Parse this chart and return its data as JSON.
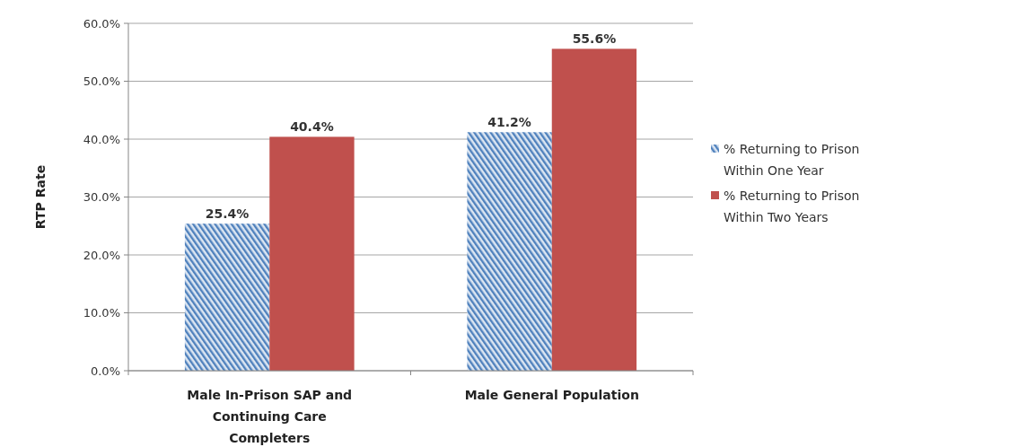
{
  "chart_data": {
    "type": "bar",
    "ylabel": "RTP Rate",
    "categories": [
      "Male In-Prison SAP and Continuing Care Completers",
      "Male General Population"
    ],
    "series": [
      {
        "name": "% Returning to Prison Within One Year",
        "color": "#4f81bd",
        "values": [
          25.4,
          41.2
        ],
        "value_labels": [
          "25.4%",
          "41.2%"
        ]
      },
      {
        "name": "% Returning to Prison Within Two Years",
        "color": "#c0504d",
        "values": [
          40.4,
          55.6
        ],
        "value_labels": [
          "40.4%",
          "55.6%"
        ]
      }
    ],
    "ylim": [
      0,
      60
    ],
    "yticks": [
      {
        "value": 0,
        "label": "0.0%"
      },
      {
        "value": 10,
        "label": "10.0%"
      },
      {
        "value": 20,
        "label": "20.0%"
      },
      {
        "value": 30,
        "label": "30.0%"
      },
      {
        "value": 40,
        "label": "40.0%"
      },
      {
        "value": 50,
        "label": "50.0%"
      },
      {
        "value": 60,
        "label": "60.0%"
      }
    ],
    "grid": "y",
    "legend": "right"
  }
}
